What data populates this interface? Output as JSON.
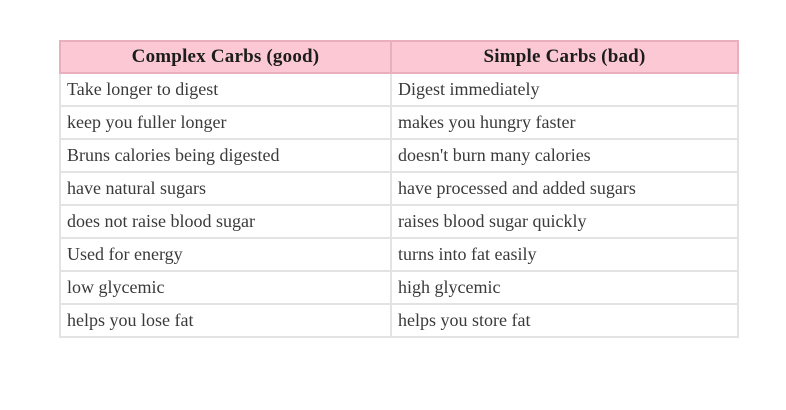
{
  "table": {
    "title_semantic": "complex-vs-simple-carbs-comparison",
    "headers": [
      "Complex Carbs (good)",
      "Simple Carbs (bad)"
    ],
    "rows": [
      [
        "Take longer to digest",
        "Digest immediately"
      ],
      [
        "keep you fuller longer",
        "makes you hungry faster"
      ],
      [
        "Bruns calories being digested",
        "doesn't burn many calories"
      ],
      [
        "have natural sugars",
        "have processed and added sugars"
      ],
      [
        "does not raise blood sugar",
        "raises blood sugar quickly"
      ],
      [
        "Used for energy",
        "turns into fat easily"
      ],
      [
        "low glycemic",
        "high glycemic"
      ],
      [
        "helps you lose fat",
        "helps you store fat"
      ]
    ]
  },
  "colors": {
    "header_background": "#fbc8d3",
    "header_border": "#e9afbc",
    "cell_border": "#e3e3e3",
    "header_text": "#1c1c1c",
    "body_text": "#3a3a3a",
    "page_background": "#ffffff"
  }
}
